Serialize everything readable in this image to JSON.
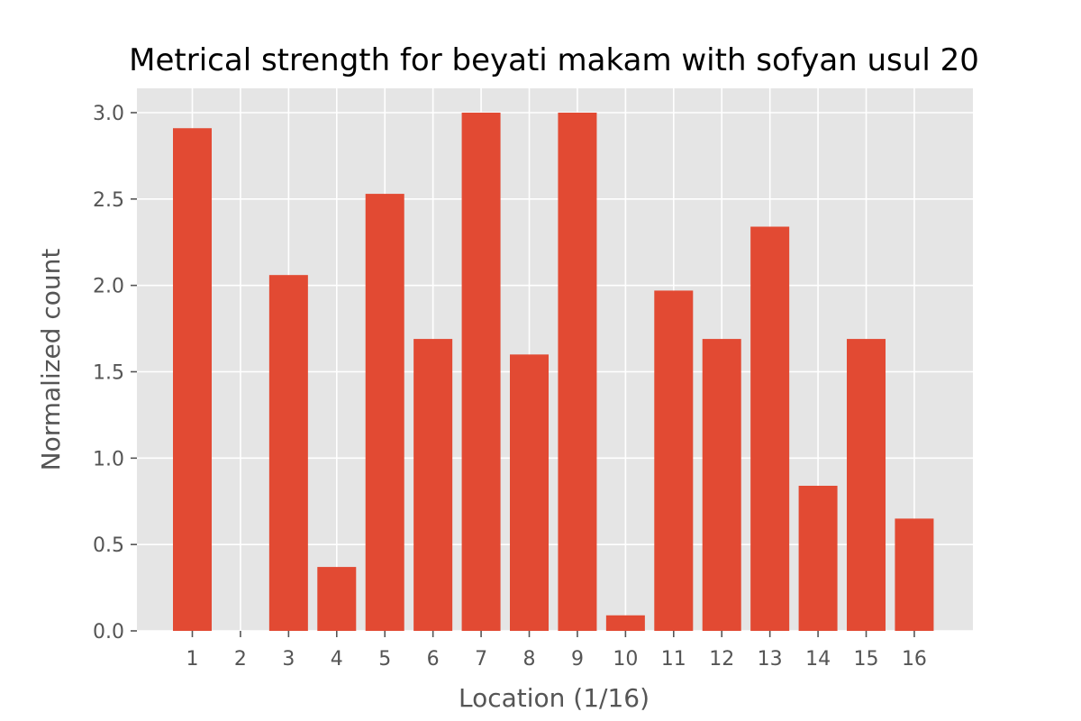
{
  "chart_data": {
    "type": "bar",
    "title": "Metrical strength for beyati makam with sofyan usul 20",
    "xlabel": "Location (1/16)",
    "ylabel": "Normalized count",
    "categories": [
      "1",
      "2",
      "3",
      "4",
      "5",
      "6",
      "7",
      "8",
      "9",
      "10",
      "11",
      "12",
      "13",
      "14",
      "15",
      "16"
    ],
    "values": [
      2.91,
      0.0,
      2.06,
      0.37,
      2.53,
      1.69,
      3.0,
      1.6,
      3.0,
      0.09,
      1.97,
      1.69,
      2.34,
      0.84,
      1.69,
      0.65
    ],
    "ylim": [
      0,
      3.0
    ],
    "yticks": [
      "0.0",
      "0.5",
      "1.0",
      "1.5",
      "2.0",
      "2.5",
      "3.0"
    ],
    "grid": true,
    "style": "ggplot",
    "colors": {
      "bar": "#E24A33",
      "plot_background": "#E5E5E5",
      "grid": "#FFFFFF"
    }
  }
}
